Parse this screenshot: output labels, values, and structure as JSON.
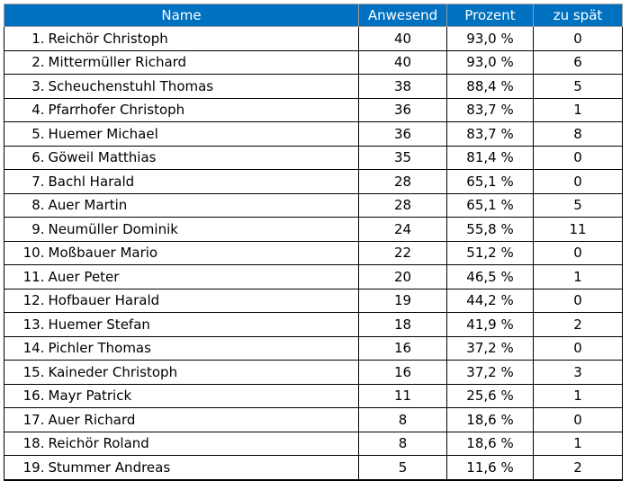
{
  "header_color": "#0070c0",
  "header_text_color": "#ffffff",
  "columns": {
    "name": "Name",
    "attendance": "Anwesend",
    "percent": "Prozent",
    "late": "zu spät"
  },
  "rows": [
    {
      "rank": "1.",
      "name": "Reichör Christoph",
      "attendance": "40",
      "percent": "93,0 %",
      "late": "0"
    },
    {
      "rank": "2.",
      "name": "Mittermüller Richard",
      "attendance": "40",
      "percent": "93,0 %",
      "late": "6"
    },
    {
      "rank": "3.",
      "name": "Scheuchenstuhl Thomas",
      "attendance": "38",
      "percent": "88,4 %",
      "late": "5"
    },
    {
      "rank": "4.",
      "name": "Pfarrhofer Christoph",
      "attendance": "36",
      "percent": "83,7 %",
      "late": "1"
    },
    {
      "rank": "5.",
      "name": "Huemer Michael",
      "attendance": "36",
      "percent": "83,7 %",
      "late": "8"
    },
    {
      "rank": "6.",
      "name": "Göweil Matthias",
      "attendance": "35",
      "percent": "81,4 %",
      "late": "0"
    },
    {
      "rank": "7.",
      "name": "Bachl Harald",
      "attendance": "28",
      "percent": "65,1 %",
      "late": "0"
    },
    {
      "rank": "8.",
      "name": "Auer Martin",
      "attendance": "28",
      "percent": "65,1 %",
      "late": "5"
    },
    {
      "rank": "9.",
      "name": "Neumüller Dominik",
      "attendance": "24",
      "percent": "55,8 %",
      "late": "11"
    },
    {
      "rank": "10.",
      "name": "Moßbauer Mario",
      "attendance": "22",
      "percent": "51,2 %",
      "late": "0"
    },
    {
      "rank": "11.",
      "name": "Auer Peter",
      "attendance": "20",
      "percent": "46,5 %",
      "late": "1"
    },
    {
      "rank": "12.",
      "name": "Hofbauer Harald",
      "attendance": "19",
      "percent": "44,2 %",
      "late": "0"
    },
    {
      "rank": "13.",
      "name": "Huemer Stefan",
      "attendance": "18",
      "percent": "41,9 %",
      "late": "2"
    },
    {
      "rank": "14.",
      "name": "Pichler Thomas",
      "attendance": "16",
      "percent": "37,2 %",
      "late": "0"
    },
    {
      "rank": "15.",
      "name": "Kaineder Christoph",
      "attendance": "16",
      "percent": "37,2 %",
      "late": "3"
    },
    {
      "rank": "16.",
      "name": "Mayr Patrick",
      "attendance": "11",
      "percent": "25,6 %",
      "late": "1"
    },
    {
      "rank": "17.",
      "name": "Auer Richard",
      "attendance": "8",
      "percent": "18,6 %",
      "late": "0"
    },
    {
      "rank": "18.",
      "name": "Reichör Roland",
      "attendance": "8",
      "percent": "18,6 %",
      "late": "1"
    },
    {
      "rank": "19.",
      "name": "Stummer Andreas",
      "attendance": "5",
      "percent": "11,6 %",
      "late": "2"
    }
  ]
}
